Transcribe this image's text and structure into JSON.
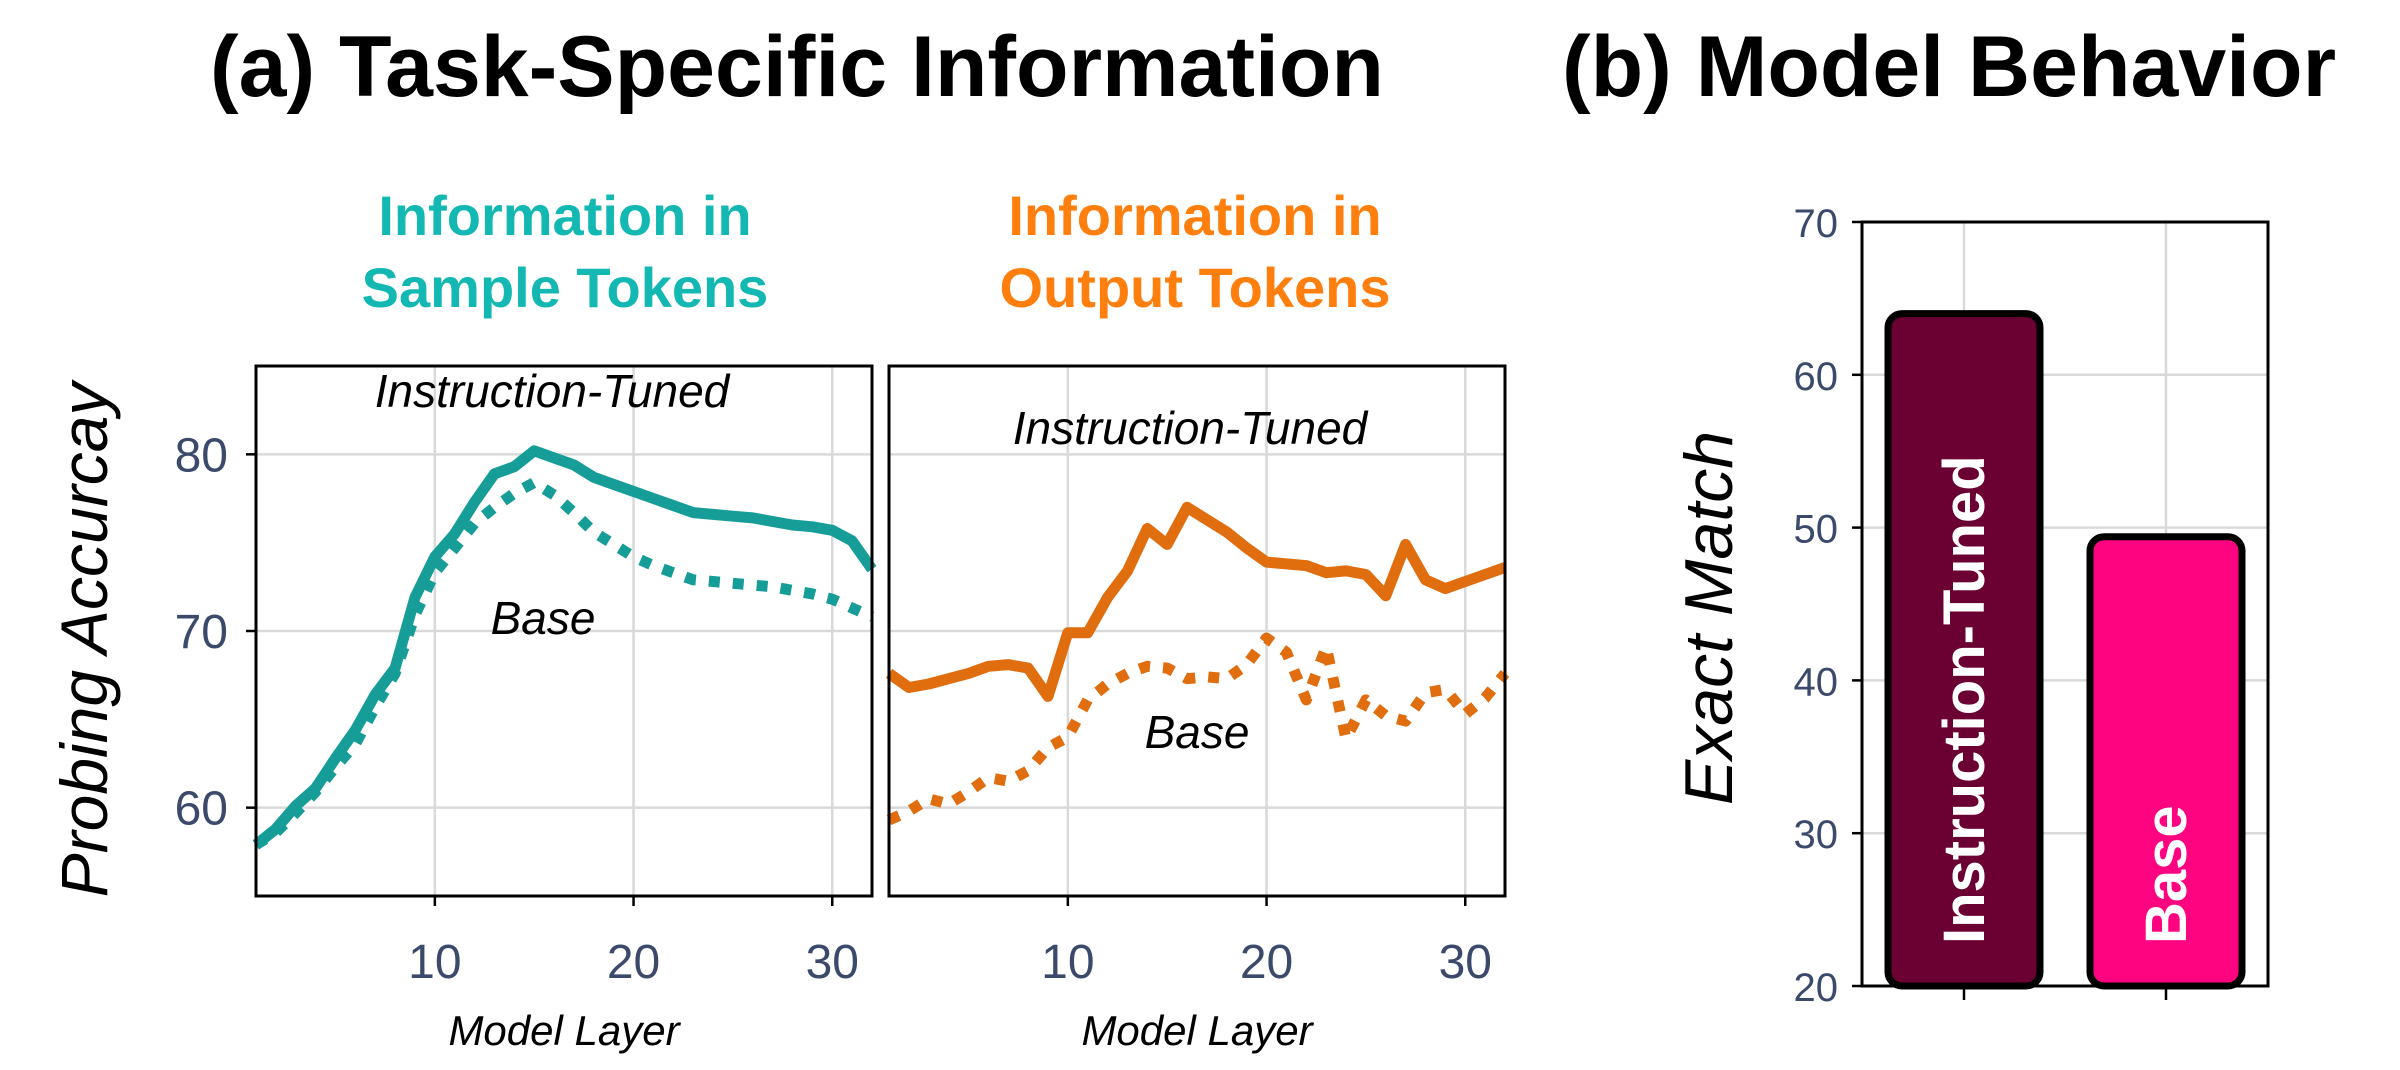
{
  "titles": {
    "a": "(a) Task-Specific Information",
    "b": "(b) Model Behavior"
  },
  "colors": {
    "sample": "#14b8b3",
    "sample_line": "#169d98",
    "output": "#ff7f0e",
    "output_line": "#e06d0e",
    "instruction_bar": "#6b0033",
    "base_bar": "#ff0480"
  },
  "subtitles": {
    "sample": {
      "line1": "Information in",
      "line2": "Sample Tokens"
    },
    "output": {
      "line1": "Information in",
      "line2": "Output Tokens"
    }
  },
  "chart_data": [
    {
      "type": "line",
      "panel": "sample-tokens",
      "xlabel": "Model Layer",
      "ylabel": "Probing Accurcay",
      "xlim": [
        1,
        32
      ],
      "ylim": [
        55,
        85
      ],
      "xticks": [
        10,
        20,
        30
      ],
      "yticks": [
        60,
        70,
        80
      ],
      "grid": true,
      "annotations": [
        "Instruction-Tuned",
        "Base"
      ],
      "x": [
        1,
        2,
        3,
        4,
        5,
        6,
        7,
        8,
        9,
        10,
        11,
        12,
        13,
        14,
        15,
        16,
        17,
        18,
        19,
        20,
        21,
        22,
        23,
        24,
        25,
        26,
        27,
        28,
        29,
        30,
        31,
        32
      ],
      "series": [
        {
          "name": "Instruction-Tuned",
          "style": "solid",
          "values": [
            57.9,
            58.8,
            60.1,
            61.1,
            62.8,
            64.4,
            66.4,
            67.9,
            71.9,
            74.2,
            75.5,
            77.3,
            78.9,
            79.3,
            80.2,
            79.8,
            79.4,
            78.7,
            78.3,
            77.9,
            77.5,
            77.1,
            76.7,
            76.6,
            76.5,
            76.4,
            76.2,
            76.0,
            75.9,
            75.7,
            75.1,
            73.5
          ]
        },
        {
          "name": "Base",
          "style": "dotted",
          "values": [
            57.9,
            58.6,
            59.7,
            60.9,
            62.3,
            63.6,
            65.7,
            67.6,
            70.9,
            73.3,
            74.7,
            76.1,
            77.0,
            77.8,
            78.4,
            77.7,
            76.7,
            75.6,
            74.9,
            74.2,
            73.7,
            73.3,
            72.9,
            72.8,
            72.7,
            72.6,
            72.5,
            72.3,
            72.1,
            71.8,
            71.3,
            70.8
          ]
        }
      ]
    },
    {
      "type": "line",
      "panel": "output-tokens",
      "xlabel": "Model Layer",
      "xlim": [
        1,
        32
      ],
      "ylim": [
        55,
        85
      ],
      "xticks": [
        10,
        20,
        30
      ],
      "grid": true,
      "annotations": [
        "Instruction-Tuned",
        "Base"
      ],
      "x": [
        1,
        2,
        3,
        4,
        5,
        6,
        7,
        8,
        9,
        10,
        11,
        12,
        13,
        14,
        15,
        16,
        17,
        18,
        19,
        20,
        21,
        22,
        23,
        24,
        25,
        26,
        27,
        28,
        29,
        30,
        31,
        32
      ],
      "series": [
        {
          "name": "Instruction-Tuned",
          "style": "solid",
          "values": [
            67.6,
            66.8,
            67.0,
            67.3,
            67.6,
            68.0,
            68.1,
            67.9,
            66.3,
            69.9,
            69.9,
            71.9,
            73.4,
            75.8,
            74.9,
            77.0,
            76.3,
            75.6,
            74.7,
            73.9,
            73.8,
            73.7,
            73.3,
            73.4,
            73.2,
            72.0,
            74.9,
            72.9,
            72.4,
            72.8,
            73.2,
            73.6
          ]
        },
        {
          "name": "Base",
          "style": "dotted",
          "values": [
            59.3,
            59.8,
            60.5,
            60.2,
            60.9,
            61.7,
            61.5,
            62.1,
            63.4,
            64.0,
            66.1,
            67.0,
            67.6,
            68.0,
            67.9,
            67.3,
            67.4,
            67.3,
            68.1,
            69.6,
            68.8,
            66.1,
            69.1,
            63.9,
            66.1,
            65.2,
            64.9,
            66.5,
            66.7,
            65.3,
            66.2,
            67.6
          ]
        }
      ]
    },
    {
      "type": "bar",
      "panel": "model-behavior",
      "ylabel": "Exact Match",
      "ylim": [
        20,
        70
      ],
      "yticks": [
        20,
        30,
        40,
        50,
        60,
        70
      ],
      "grid": true,
      "categories": [
        "Instruction-Tuned",
        "Base"
      ],
      "values": [
        64,
        49.4
      ]
    }
  ]
}
